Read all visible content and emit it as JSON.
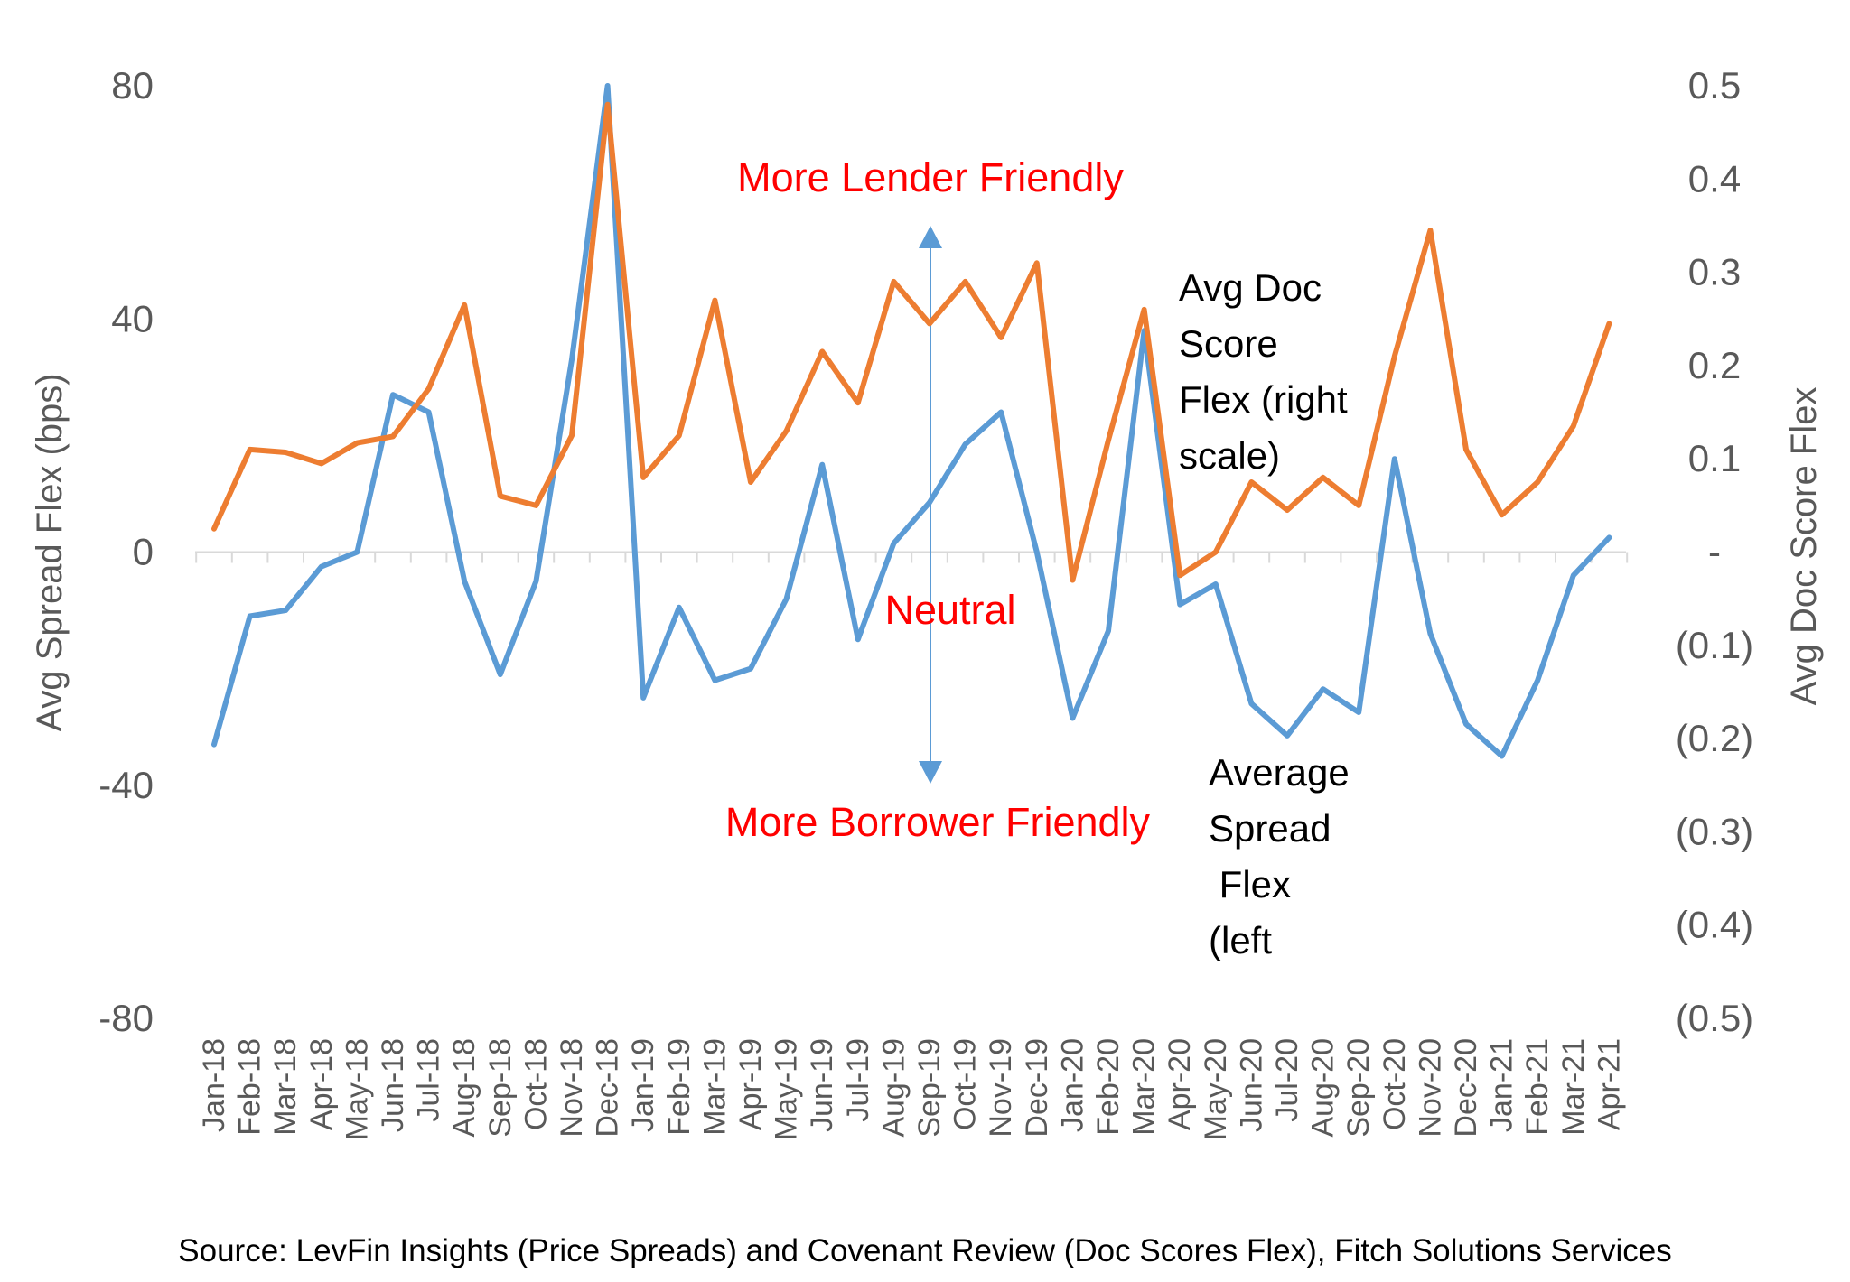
{
  "chart_data": {
    "type": "line",
    "categories": [
      "Jan-18",
      "Feb-18",
      "Mar-18",
      "Apr-18",
      "May-18",
      "Jun-18",
      "Jul-18",
      "Aug-18",
      "Sep-18",
      "Oct-18",
      "Nov-18",
      "Dec-18",
      "Jan-19",
      "Feb-19",
      "Mar-19",
      "Apr-19",
      "May-19",
      "Jun-19",
      "Jul-19",
      "Aug-19",
      "Sep-19",
      "Oct-19",
      "Nov-19",
      "Dec-19",
      "Jan-20",
      "Feb-20",
      "Mar-20",
      "Apr-20",
      "May-20",
      "Jun-20",
      "Jul-20",
      "Aug-20",
      "Sep-20",
      "Oct-20",
      "Nov-20",
      "Dec-20",
      "Jan-21",
      "Feb-21",
      "Mar-21",
      "Apr-21"
    ],
    "series": [
      {
        "name": "Average Spread Flex (left",
        "axis": "left",
        "color": "#5b9bd5",
        "values": [
          -33,
          -11,
          -10,
          -2.5,
          0,
          27,
          24,
          -5,
          -21,
          -5,
          33,
          80,
          -25,
          -9.5,
          -22,
          -20,
          -8,
          15,
          -15,
          1.5,
          8.5,
          18.5,
          24,
          0,
          -28.5,
          -13.5,
          38,
          -9,
          -5.5,
          -26,
          -31.5,
          -23.5,
          -27.5,
          16,
          -14,
          -29.5,
          -35,
          -22,
          -4,
          2.5
        ]
      },
      {
        "name": "Avg Doc Score Flex (right scale)",
        "axis": "right",
        "color": "#ed7d31",
        "values": [
          0.025,
          0.11,
          0.107,
          0.095,
          0.117,
          0.124,
          0.175,
          0.265,
          0.06,
          0.05,
          0.125,
          0.48,
          0.08,
          0.125,
          0.27,
          0.075,
          0.13,
          0.215,
          0.16,
          0.29,
          0.245,
          0.29,
          0.23,
          0.31,
          -0.03,
          0.12,
          0.26,
          -0.025,
          0.0,
          0.075,
          0.045,
          0.08,
          0.05,
          0.21,
          0.345,
          0.11,
          0.04,
          0.075,
          0.135,
          0.245
        ]
      }
    ],
    "y_left": {
      "label": "Avg Spread Flex (bps)",
      "range": [
        -80,
        80
      ],
      "ticks": [
        "80",
        "40",
        "0",
        "-40",
        "-80"
      ]
    },
    "y_right": {
      "label": "Avg Doc Score Flex",
      "range": [
        -0.5,
        0.5
      ],
      "ticks": [
        "0.5",
        "0.4",
        "0.3",
        "0.2",
        "0.1",
        "-",
        "(0.1)",
        "(0.2)",
        "(0.3)",
        "(0.4)",
        "(0.5)"
      ]
    },
    "grid": false,
    "annotations": {
      "lender": "More Lender Friendly",
      "neutral": "Neutral",
      "borrower": "More Borrower Friendly",
      "doc_label": [
        "Avg Doc",
        "Score",
        "Flex (right",
        "scale)"
      ],
      "spread_label": [
        "Average",
        "Spread",
        " Flex",
        "(left"
      ]
    },
    "source": "Source: LevFin Insights (Price Spreads) and Covenant Review (Doc Scores Flex), Fitch Solutions Services"
  }
}
